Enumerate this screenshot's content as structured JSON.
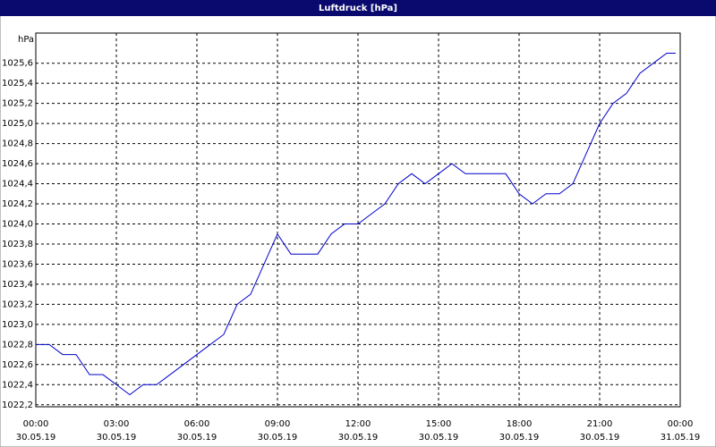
{
  "chart_data": {
    "type": "line",
    "title": "Luftdruck [hPa]",
    "y_label": "hPa",
    "x": [
      0,
      0.5,
      1,
      1.5,
      2,
      2.5,
      3,
      3.5,
      4,
      4.5,
      5,
      5.5,
      6,
      6.5,
      7,
      7.5,
      8,
      8.5,
      9,
      9.5,
      10,
      10.5,
      11,
      11.5,
      12,
      12.5,
      13,
      13.5,
      14,
      14.5,
      15,
      15.5,
      16,
      16.5,
      17,
      17.5,
      18,
      18.5,
      19,
      19.5,
      20,
      20.5,
      21,
      21.5,
      22,
      22.5,
      23,
      23.5,
      23.83
    ],
    "series": [
      {
        "name": "Luftdruck",
        "color": "#0000cc",
        "values": [
          1022.8,
          1022.8,
          1022.7,
          1022.7,
          1022.5,
          1022.5,
          1022.4,
          1022.3,
          1022.4,
          1022.4,
          1022.5,
          1022.6,
          1022.7,
          1022.8,
          1022.9,
          1023.2,
          1023.3,
          1023.6,
          1023.9,
          1023.7,
          1023.7,
          1023.7,
          1023.9,
          1024.0,
          1024.0,
          1024.1,
          1024.2,
          1024.4,
          1024.5,
          1024.4,
          1024.5,
          1024.6,
          1024.5,
          1024.5,
          1024.5,
          1024.5,
          1024.3,
          1024.2,
          1024.3,
          1024.3,
          1024.4,
          1024.7,
          1025.0,
          1025.2,
          1025.3,
          1025.5,
          1025.6,
          1025.7,
          1025.7
        ]
      }
    ],
    "xlim": [
      0,
      24
    ],
    "xticks": [
      {
        "value": 0,
        "label": "00:00",
        "date": "30.05.19"
      },
      {
        "value": 3,
        "label": "03:00",
        "date": "30.05.19"
      },
      {
        "value": 6,
        "label": "06:00",
        "date": "30.05.19"
      },
      {
        "value": 9,
        "label": "09:00",
        "date": "30.05.19"
      },
      {
        "value": 12,
        "label": "12:00",
        "date": "30.05.19"
      },
      {
        "value": 15,
        "label": "15:00",
        "date": "30.05.19"
      },
      {
        "value": 18,
        "label": "18:00",
        "date": "30.05.19"
      },
      {
        "value": 21,
        "label": "21:00",
        "date": "30.05.19"
      },
      {
        "value": 24,
        "label": "00:00",
        "date": "31.05.19"
      }
    ],
    "ylim": [
      1022.18,
      1025.9
    ],
    "yticks": [
      {
        "value": 1022.2,
        "label": "1022,2"
      },
      {
        "value": 1022.4,
        "label": "1022,4"
      },
      {
        "value": 1022.6,
        "label": "1022,6"
      },
      {
        "value": 1022.8,
        "label": "1022,8"
      },
      {
        "value": 1023.0,
        "label": "1023,0"
      },
      {
        "value": 1023.2,
        "label": "1023,2"
      },
      {
        "value": 1023.4,
        "label": "1023,4"
      },
      {
        "value": 1023.6,
        "label": "1023,6"
      },
      {
        "value": 1023.8,
        "label": "1023,8"
      },
      {
        "value": 1024.0,
        "label": "1024,0"
      },
      {
        "value": 1024.2,
        "label": "1024,2"
      },
      {
        "value": 1024.4,
        "label": "1024,4"
      },
      {
        "value": 1024.6,
        "label": "1024,6"
      },
      {
        "value": 1024.8,
        "label": "1024,8"
      },
      {
        "value": 1025.0,
        "label": "1025,0"
      },
      {
        "value": 1025.2,
        "label": "1025,2"
      },
      {
        "value": 1025.4,
        "label": "1025,4"
      },
      {
        "value": 1025.6,
        "label": "1025,6"
      }
    ],
    "grid": true
  }
}
